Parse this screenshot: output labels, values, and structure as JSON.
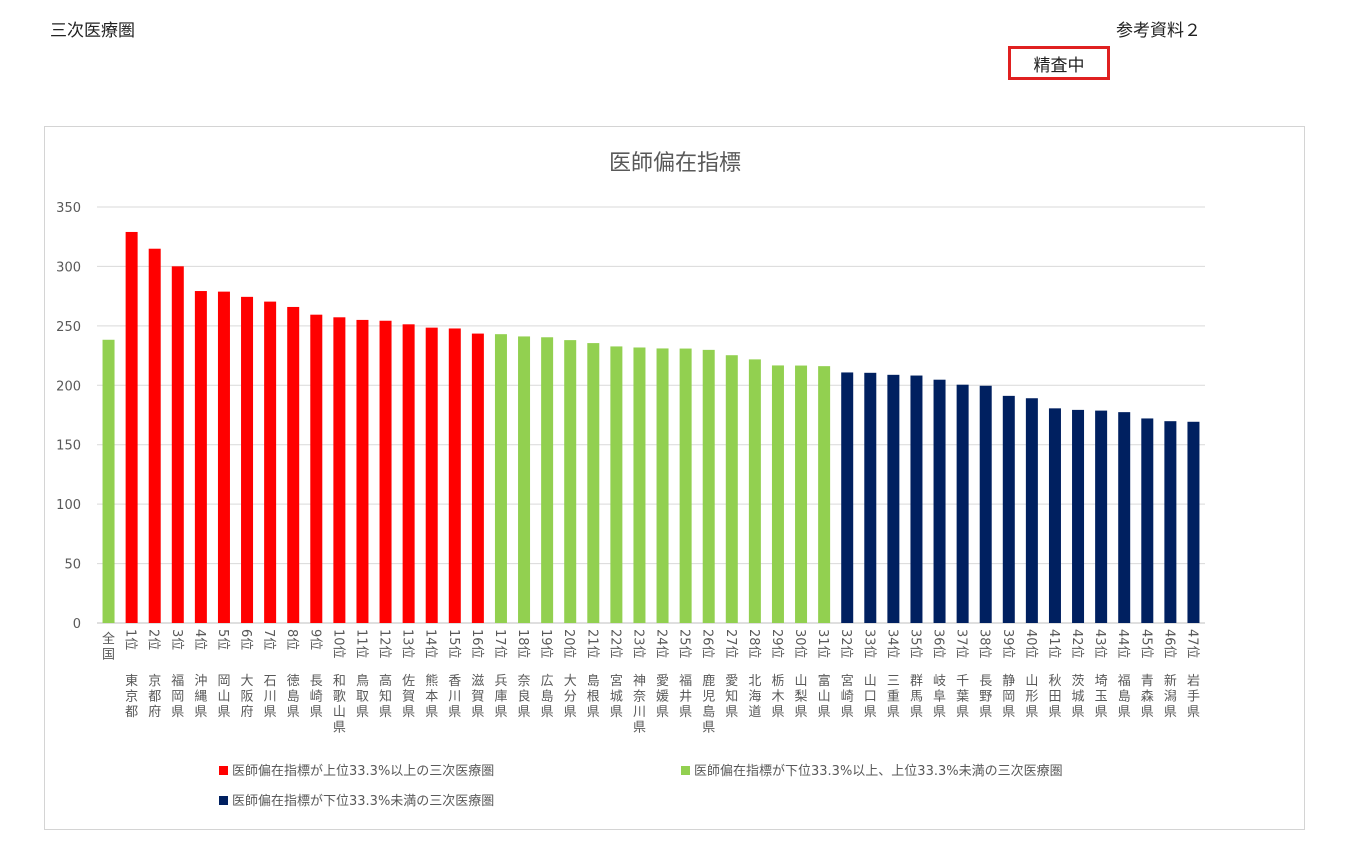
{
  "header": {
    "left_title": "三次医療圏",
    "right_ref": "参考資料２",
    "stamp": "精査中"
  },
  "colors": {
    "red": "#ff0000",
    "green": "#92d050",
    "navy": "#002060"
  },
  "chart_data": {
    "type": "bar",
    "title": "医師偏在指標",
    "ylim": [
      0,
      350
    ],
    "yticks": [
      0,
      50,
      100,
      150,
      200,
      250,
      300,
      350
    ],
    "grid": true,
    "legend_position": "bottom",
    "legend": [
      {
        "label": "医師偏在指標が上位33.3%以上の三次医療圏",
        "color": "#ff0000"
      },
      {
        "label": "医師偏在指標が下位33.3%以上、上位33.3%未満の三次医療圏",
        "color": "#92d050"
      },
      {
        "label": "医師偏在指標が下位33.3%未満の三次医療圏",
        "color": "#002060"
      }
    ],
    "categories": [
      {
        "rank": "",
        "name": "全国",
        "value": 238.3,
        "group": "green"
      },
      {
        "rank": "1位",
        "name": "東京都",
        "value": 329.0,
        "group": "red"
      },
      {
        "rank": "2位",
        "name": "京都府",
        "value": 314.9,
        "group": "red"
      },
      {
        "rank": "3位",
        "name": "福岡県",
        "value": 300.1,
        "group": "red"
      },
      {
        "rank": "4位",
        "name": "沖縄県",
        "value": 279.3,
        "group": "red"
      },
      {
        "rank": "5位",
        "name": "岡山県",
        "value": 278.8,
        "group": "red"
      },
      {
        "rank": "6位",
        "name": "大阪府",
        "value": 274.4,
        "group": "red"
      },
      {
        "rank": "7位",
        "name": "石川県",
        "value": 270.4,
        "group": "red"
      },
      {
        "rank": "8位",
        "name": "徳島県",
        "value": 265.9,
        "group": "red"
      },
      {
        "rank": "9位",
        "name": "長崎県",
        "value": 259.4,
        "group": "red"
      },
      {
        "rank": "10位",
        "name": "和歌山県",
        "value": 257.2,
        "group": "red"
      },
      {
        "rank": "11位",
        "name": "鳥取県",
        "value": 255.0,
        "group": "red"
      },
      {
        "rank": "12位",
        "name": "高知県",
        "value": 254.3,
        "group": "red"
      },
      {
        "rank": "13位",
        "name": "佐賀県",
        "value": 251.3,
        "group": "red"
      },
      {
        "rank": "14位",
        "name": "熊本県",
        "value": 248.5,
        "group": "red"
      },
      {
        "rank": "15位",
        "name": "香川県",
        "value": 247.8,
        "group": "red"
      },
      {
        "rank": "16位",
        "name": "滋賀県",
        "value": 243.5,
        "group": "red"
      },
      {
        "rank": "17位",
        "name": "兵庫県",
        "value": 243.0,
        "group": "green"
      },
      {
        "rank": "18位",
        "name": "奈良県",
        "value": 241.1,
        "group": "green"
      },
      {
        "rank": "19位",
        "name": "広島県",
        "value": 240.4,
        "group": "green"
      },
      {
        "rank": "20位",
        "name": "大分県",
        "value": 238.0,
        "group": "green"
      },
      {
        "rank": "21位",
        "name": "島根県",
        "value": 235.5,
        "group": "green"
      },
      {
        "rank": "22位",
        "name": "宮城県",
        "value": 232.7,
        "group": "green"
      },
      {
        "rank": "23位",
        "name": "神奈川県",
        "value": 231.8,
        "group": "green"
      },
      {
        "rank": "24位",
        "name": "愛媛県",
        "value": 231.0,
        "group": "green"
      },
      {
        "rank": "25位",
        "name": "福井県",
        "value": 230.9,
        "group": "green"
      },
      {
        "rank": "26位",
        "name": "鹿児島県",
        "value": 229.8,
        "group": "green"
      },
      {
        "rank": "27位",
        "name": "愛知県",
        "value": 225.3,
        "group": "green"
      },
      {
        "rank": "28位",
        "name": "北海道",
        "value": 221.8,
        "group": "green"
      },
      {
        "rank": "29位",
        "name": "栃木県",
        "value": 216.7,
        "group": "green"
      },
      {
        "rank": "30位",
        "name": "山梨県",
        "value": 216.6,
        "group": "green"
      },
      {
        "rank": "31位",
        "name": "富山県",
        "value": 216.1,
        "group": "green"
      },
      {
        "rank": "32位",
        "name": "宮崎県",
        "value": 210.8,
        "group": "navy"
      },
      {
        "rank": "33位",
        "name": "山口県",
        "value": 210.5,
        "group": "navy"
      },
      {
        "rank": "34位",
        "name": "三重県",
        "value": 208.8,
        "group": "navy"
      },
      {
        "rank": "35位",
        "name": "群馬県",
        "value": 208.2,
        "group": "navy"
      },
      {
        "rank": "36位",
        "name": "岐阜県",
        "value": 204.7,
        "group": "navy"
      },
      {
        "rank": "37位",
        "name": "千葉県",
        "value": 200.5,
        "group": "navy"
      },
      {
        "rank": "38位",
        "name": "長野県",
        "value": 199.6,
        "group": "navy"
      },
      {
        "rank": "39位",
        "name": "静岡県",
        "value": 191.1,
        "group": "navy"
      },
      {
        "rank": "40位",
        "name": "山形県",
        "value": 189.1,
        "group": "navy"
      },
      {
        "rank": "41位",
        "name": "秋田県",
        "value": 180.6,
        "group": "navy"
      },
      {
        "rank": "42位",
        "name": "茨城県",
        "value": 179.3,
        "group": "navy"
      },
      {
        "rank": "43位",
        "name": "埼玉県",
        "value": 178.7,
        "group": "navy"
      },
      {
        "rank": "44位",
        "name": "福島県",
        "value": 177.4,
        "group": "navy"
      },
      {
        "rank": "45位",
        "name": "青森県",
        "value": 172.1,
        "group": "navy"
      },
      {
        "rank": "46位",
        "name": "新潟県",
        "value": 169.8,
        "group": "navy"
      },
      {
        "rank": "47位",
        "name": "岩手県",
        "value": 169.3,
        "group": "navy"
      }
    ]
  }
}
